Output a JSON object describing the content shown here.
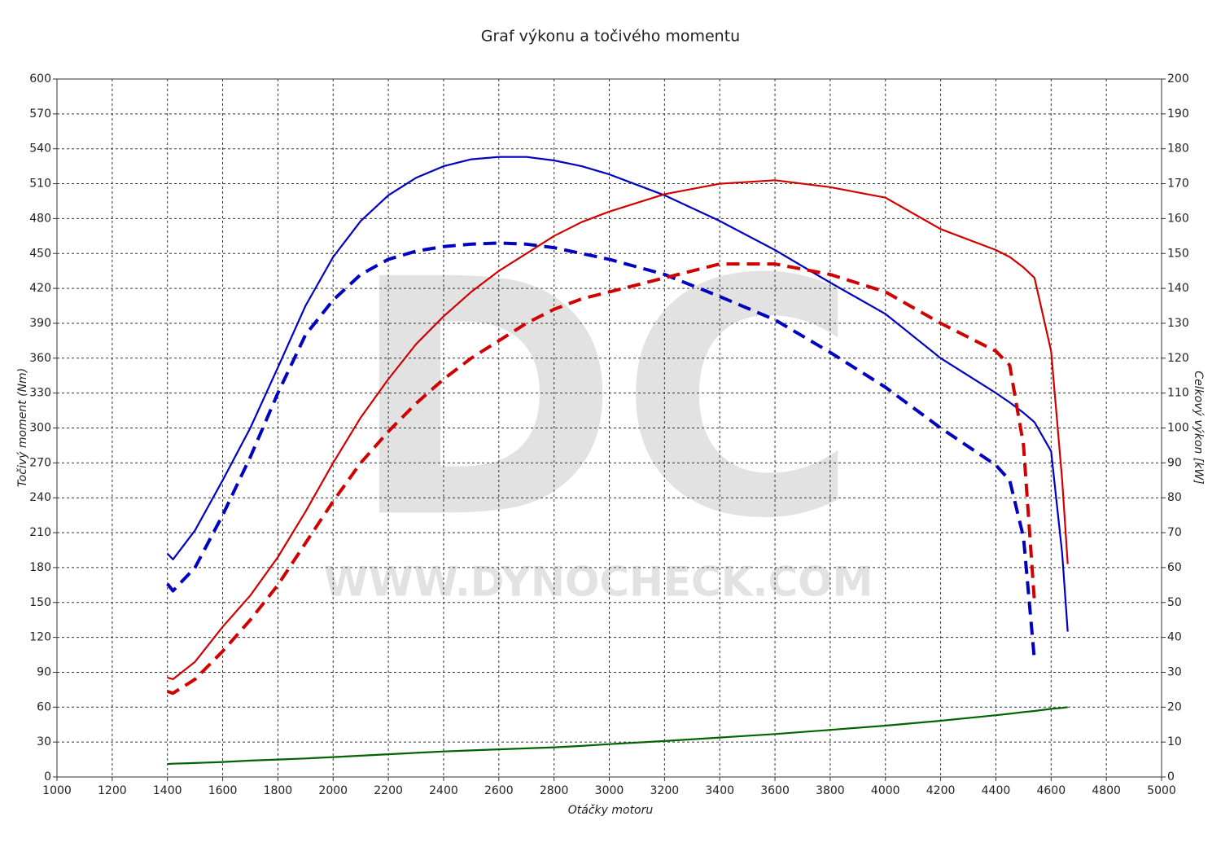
{
  "chart_data": {
    "type": "line",
    "title": "Graf výkonu a točivého momentu",
    "watermark": "DC",
    "watermark_url": "WWW.DYNOCHECK.COM",
    "xlabel": "Otáčky motoru",
    "ylabel": "Točivý moment (Nm)",
    "y2label": "Celkový výkon [kW]",
    "grid": true,
    "xlim": [
      1000,
      5000
    ],
    "xticks": [
      1000,
      1200,
      1400,
      1600,
      1800,
      2000,
      2200,
      2400,
      2600,
      2800,
      3000,
      3200,
      3400,
      3600,
      3800,
      4000,
      4200,
      4400,
      4600,
      4800,
      5000
    ],
    "ylim": [
      0,
      600
    ],
    "yticks": [
      0,
      30,
      60,
      90,
      120,
      150,
      180,
      210,
      240,
      270,
      300,
      330,
      360,
      390,
      420,
      450,
      480,
      510,
      540,
      570,
      600
    ],
    "y2lim": [
      0,
      200
    ],
    "y2ticks": [
      0,
      10,
      20,
      30,
      40,
      50,
      60,
      70,
      80,
      90,
      100,
      110,
      120,
      130,
      140,
      150,
      160,
      170,
      180,
      190,
      200
    ],
    "x": [
      1400,
      1420,
      1500,
      1600,
      1700,
      1800,
      1900,
      2000,
      2100,
      2200,
      2300,
      2400,
      2500,
      2600,
      2700,
      2800,
      2900,
      3000,
      3200,
      3400,
      3600,
      3800,
      4000,
      4200,
      4400,
      4450,
      4500,
      4540,
      4600,
      4640,
      4660
    ],
    "series": [
      {
        "color": "#0000c0",
        "dashed": false,
        "values": [
          192,
          187,
          212,
          255,
          300,
          352,
          405,
          447,
          478,
          500,
          515,
          525,
          531,
          533,
          533,
          530,
          525,
          518,
          500,
          478,
          453,
          425,
          398,
          360,
          330,
          322,
          313,
          305,
          280,
          192,
          125
        ]
      },
      {
        "color": "#0000c0",
        "dashed": true,
        "values": [
          166,
          160,
          180,
          225,
          275,
          330,
          380,
          410,
          432,
          445,
          452,
          456,
          458,
          459,
          458,
          455,
          450,
          445,
          432,
          413,
          393,
          365,
          335,
          300,
          268,
          255,
          206,
          100,
          null,
          null,
          null
        ]
      },
      {
        "color": "#d00000",
        "dashed": false,
        "axis": "y2",
        "values": [
          28.5,
          28,
          33,
          43,
          52,
          63,
          76,
          90,
          103,
          114,
          124,
          132,
          139,
          145,
          150,
          155,
          159,
          162,
          167,
          170,
          171,
          169,
          166,
          157,
          151,
          149,
          146,
          143,
          122,
          85,
          61
        ]
      },
      {
        "color": "#d00000",
        "dashed": true,
        "axis": "y2",
        "values": [
          24.5,
          24,
          28,
          36,
          45,
          55,
          67,
          79,
          90,
          99,
          107,
          114,
          120,
          125,
          130,
          134,
          137,
          139,
          143,
          147,
          147,
          144,
          139,
          130,
          122,
          118,
          95,
          50,
          null,
          null,
          null
        ]
      },
      {
        "color": "#006400",
        "dashed": false,
        "axis": "y2",
        "values": [
          3.7,
          3.8,
          4,
          4.3,
          4.7,
          5,
          5.3,
          5.7,
          6.1,
          6.5,
          6.9,
          7.3,
          7.6,
          7.9,
          8.2,
          8.5,
          8.9,
          9.4,
          10.3,
          11.3,
          12.3,
          13.5,
          14.7,
          16.1,
          17.7,
          18.1,
          18.6,
          18.9,
          19.5,
          19.8,
          20
        ]
      }
    ]
  }
}
